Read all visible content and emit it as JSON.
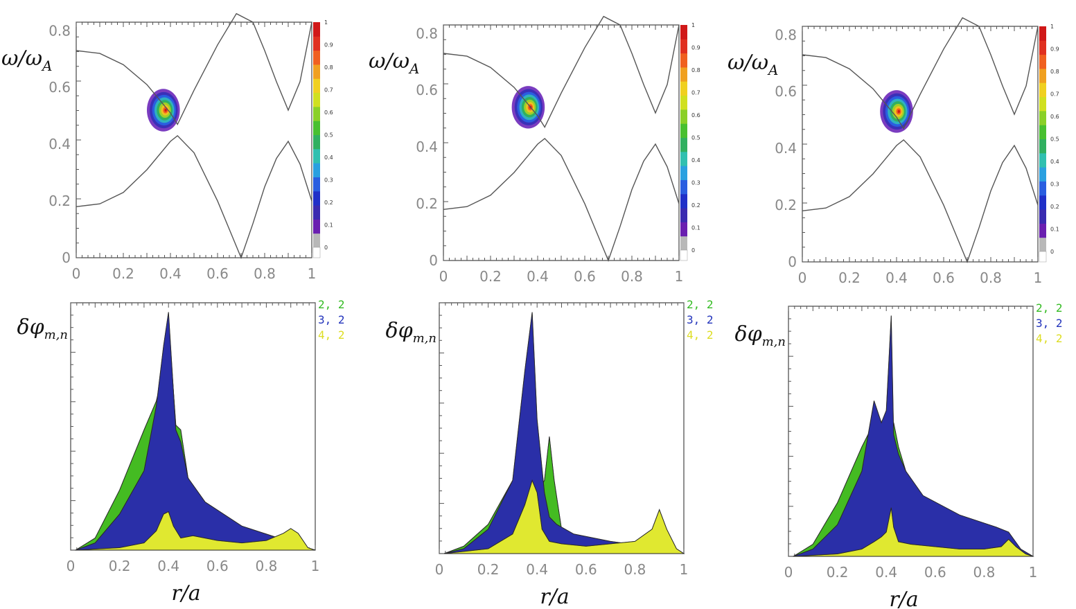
{
  "figure": {
    "colorbar_labels": [
      "1",
      "0.9",
      "0.8",
      "0.7",
      "0.6",
      "0.5",
      "0.4",
      "0.3",
      "0.2",
      "0.1",
      "0"
    ],
    "colorbar_colors": [
      "#b8b8b8",
      "#6a1fb0",
      "#3a2bb0",
      "#2030c8",
      "#2a5ee0",
      "#2aa0e0",
      "#30c0b0",
      "#30b060",
      "#48c030",
      "#8ad028",
      "#d0e020",
      "#f0d020",
      "#f0a020",
      "#f06020",
      "#e03020",
      "#d01818"
    ],
    "legend_colors": {
      "m2": "#33bb22",
      "m3": "#2233bb",
      "m4": "#dddd22"
    },
    "top_ylabel": "ω/ωA",
    "bottom_ylabel": "δφm,n",
    "xlabel": "r/a"
  },
  "chart_data": [
    {
      "type": "line",
      "panel": "continuum-1",
      "x_ticks": [
        "0",
        "0.2",
        "0.4",
        "0.6",
        "0.8",
        "1"
      ],
      "y_ticks": [
        "0",
        "0.2",
        "0.4",
        "0.6",
        "0.8"
      ],
      "xlim": [
        0,
        1
      ],
      "ylim": [
        0,
        0.83
      ],
      "continuum_upper": {
        "x": [
          0,
          0.1,
          0.2,
          0.3,
          0.4,
          0.43,
          0.5,
          0.6,
          0.68,
          0.75,
          0.8,
          0.85,
          0.9,
          0.95,
          1.0
        ],
        "y": [
          0.73,
          0.72,
          0.68,
          0.61,
          0.51,
          0.47,
          0.59,
          0.75,
          0.86,
          0.83,
          0.73,
          0.62,
          0.52,
          0.62,
          0.83
        ]
      },
      "continuum_lower": {
        "x": [
          0,
          0.1,
          0.2,
          0.3,
          0.4,
          0.43,
          0.5,
          0.6,
          0.65,
          0.7,
          0.75,
          0.8,
          0.85,
          0.9,
          0.95,
          1.0
        ],
        "y": [
          0.18,
          0.19,
          0.23,
          0.31,
          0.41,
          0.43,
          0.37,
          0.2,
          0.1,
          0.0,
          0.12,
          0.25,
          0.35,
          0.41,
          0.33,
          0.2
        ]
      },
      "hotspot": {
        "r": 0.37,
        "w": 0.52,
        "rx": 0.14,
        "ry": 0.075
      },
      "colorbar_title": ""
    },
    {
      "type": "line",
      "panel": "continuum-2",
      "x_ticks": [
        "0",
        "0.2",
        "0.4",
        "0.6",
        "0.8",
        "1"
      ],
      "y_ticks": [
        "0",
        "0.2",
        "0.4",
        "0.6",
        "0.8"
      ],
      "xlim": [
        0,
        1
      ],
      "ylim": [
        0,
        0.83
      ],
      "continuum_upper": {
        "x": [
          0,
          0.1,
          0.2,
          0.3,
          0.4,
          0.43,
          0.5,
          0.6,
          0.68,
          0.75,
          0.8,
          0.85,
          0.9,
          0.95,
          1.0
        ],
        "y": [
          0.73,
          0.72,
          0.68,
          0.61,
          0.51,
          0.47,
          0.59,
          0.75,
          0.86,
          0.83,
          0.73,
          0.62,
          0.52,
          0.62,
          0.83
        ]
      },
      "continuum_lower": {
        "x": [
          0,
          0.1,
          0.2,
          0.3,
          0.4,
          0.43,
          0.5,
          0.6,
          0.65,
          0.7,
          0.75,
          0.8,
          0.85,
          0.9,
          0.95,
          1.0
        ],
        "y": [
          0.18,
          0.19,
          0.23,
          0.31,
          0.41,
          0.43,
          0.37,
          0.2,
          0.1,
          0.0,
          0.12,
          0.25,
          0.35,
          0.41,
          0.33,
          0.2
        ]
      },
      "hotspot": {
        "r": 0.36,
        "w": 0.54,
        "rx": 0.14,
        "ry": 0.075
      }
    },
    {
      "type": "line",
      "panel": "continuum-3",
      "x_ticks": [
        "0",
        "0.2",
        "0.4",
        "0.6",
        "0.8",
        "1"
      ],
      "y_ticks": [
        "0",
        "0.2",
        "0.4",
        "0.6",
        "0.8"
      ],
      "xlim": [
        0,
        1
      ],
      "ylim": [
        0,
        0.83
      ],
      "continuum_upper": {
        "x": [
          0,
          0.1,
          0.2,
          0.3,
          0.4,
          0.43,
          0.5,
          0.6,
          0.68,
          0.75,
          0.8,
          0.85,
          0.9,
          0.95,
          1.0
        ],
        "y": [
          0.73,
          0.72,
          0.68,
          0.61,
          0.51,
          0.47,
          0.59,
          0.75,
          0.86,
          0.83,
          0.73,
          0.62,
          0.52,
          0.62,
          0.83
        ]
      },
      "continuum_lower": {
        "x": [
          0,
          0.1,
          0.2,
          0.3,
          0.4,
          0.43,
          0.5,
          0.6,
          0.65,
          0.7,
          0.75,
          0.8,
          0.85,
          0.9,
          0.95,
          1.0
        ],
        "y": [
          0.18,
          0.19,
          0.23,
          0.31,
          0.41,
          0.43,
          0.37,
          0.2,
          0.1,
          0.0,
          0.12,
          0.25,
          0.35,
          0.41,
          0.33,
          0.2
        ]
      },
      "hotspot": {
        "r": 0.4,
        "w": 0.53,
        "rx": 0.14,
        "ry": 0.075
      }
    },
    {
      "type": "area",
      "panel": "modes-1",
      "x_ticks": [
        "0",
        "0.2",
        "0.4",
        "0.6",
        "0.8",
        "1"
      ],
      "xlim": [
        0,
        1
      ],
      "ylim": [
        0,
        1.0
      ],
      "legend": [
        "2, 2",
        "3, 2",
        "4, 2"
      ],
      "series": [
        {
          "name": "2, 2",
          "x": [
            0.02,
            0.1,
            0.2,
            0.3,
            0.35,
            0.38,
            0.4,
            0.43,
            0.45,
            0.48,
            0.55,
            0.7,
            0.85,
            0.95,
            1.0
          ],
          "y": [
            0,
            0.05,
            0.25,
            0.5,
            0.62,
            0.75,
            0.95,
            0.52,
            0.5,
            0.3,
            0.18,
            0.09,
            0.05,
            0.01,
            0
          ]
        },
        {
          "name": "3, 2",
          "x": [
            0.02,
            0.1,
            0.2,
            0.3,
            0.35,
            0.38,
            0.4,
            0.43,
            0.45,
            0.48,
            0.55,
            0.7,
            0.85,
            0.95,
            1.0
          ],
          "y": [
            0,
            0.03,
            0.15,
            0.33,
            0.6,
            0.85,
            0.99,
            0.5,
            0.45,
            0.3,
            0.2,
            0.1,
            0.05,
            0.01,
            0
          ]
        },
        {
          "name": "4, 2",
          "x": [
            0.02,
            0.2,
            0.3,
            0.35,
            0.38,
            0.4,
            0.42,
            0.45,
            0.5,
            0.6,
            0.7,
            0.8,
            0.87,
            0.9,
            0.93,
            0.97,
            1.0
          ],
          "y": [
            0,
            0.01,
            0.03,
            0.08,
            0.15,
            0.16,
            0.1,
            0.05,
            0.06,
            0.04,
            0.03,
            0.04,
            0.07,
            0.09,
            0.07,
            0.01,
            0
          ]
        }
      ]
    },
    {
      "type": "area",
      "panel": "modes-2",
      "x_ticks": [
        "0",
        "0.2",
        "0.4",
        "0.6",
        "0.8",
        "1"
      ],
      "xlim": [
        0,
        1
      ],
      "ylim": [
        0,
        1.0
      ],
      "legend": [
        "2, 2",
        "3, 2",
        "4, 2"
      ],
      "series": [
        {
          "name": "2, 2",
          "x": [
            0.02,
            0.1,
            0.2,
            0.3,
            0.36,
            0.38,
            0.4,
            0.43,
            0.45,
            0.47,
            0.5,
            0.55,
            0.7,
            0.85,
            0.95,
            1.0
          ],
          "y": [
            0,
            0.03,
            0.12,
            0.3,
            0.5,
            0.2,
            0.25,
            0.3,
            0.48,
            0.3,
            0.1,
            0.05,
            0.03,
            0.02,
            0.01,
            0
          ]
        },
        {
          "name": "3, 2",
          "x": [
            0.02,
            0.1,
            0.2,
            0.3,
            0.35,
            0.38,
            0.4,
            0.43,
            0.45,
            0.48,
            0.55,
            0.7,
            0.85,
            0.95,
            1.0
          ],
          "y": [
            0,
            0.02,
            0.1,
            0.3,
            0.75,
            0.99,
            0.55,
            0.25,
            0.15,
            0.12,
            0.08,
            0.05,
            0.03,
            0.01,
            0
          ]
        },
        {
          "name": "4, 2",
          "x": [
            0.02,
            0.2,
            0.3,
            0.35,
            0.38,
            0.4,
            0.42,
            0.45,
            0.5,
            0.6,
            0.7,
            0.8,
            0.87,
            0.9,
            0.93,
            0.97,
            1.0
          ],
          "y": [
            0,
            0.02,
            0.08,
            0.2,
            0.3,
            0.25,
            0.1,
            0.05,
            0.04,
            0.03,
            0.04,
            0.05,
            0.1,
            0.18,
            0.1,
            0.02,
            0
          ]
        }
      ]
    },
    {
      "type": "area",
      "panel": "modes-3",
      "x_ticks": [
        "0",
        "0.2",
        "0.4",
        "0.6",
        "0.8",
        "1"
      ],
      "xlim": [
        0,
        1
      ],
      "ylim": [
        0,
        1.0
      ],
      "legend": [
        "2, 2",
        "3, 2",
        "4, 2"
      ],
      "series": [
        {
          "name": "2, 2",
          "x": [
            0.02,
            0.1,
            0.2,
            0.3,
            0.35,
            0.38,
            0.4,
            0.43,
            0.45,
            0.48,
            0.55,
            0.7,
            0.85,
            0.95,
            1.0
          ],
          "y": [
            0,
            0.05,
            0.22,
            0.45,
            0.55,
            0.5,
            0.45,
            0.55,
            0.45,
            0.35,
            0.2,
            0.1,
            0.05,
            0.01,
            0
          ]
        },
        {
          "name": "3, 2",
          "x": [
            0.02,
            0.1,
            0.2,
            0.3,
            0.35,
            0.38,
            0.4,
            0.42,
            0.43,
            0.45,
            0.48,
            0.55,
            0.7,
            0.85,
            0.9,
            0.95,
            1.0
          ],
          "y": [
            0,
            0.03,
            0.13,
            0.35,
            0.64,
            0.55,
            0.6,
            0.99,
            0.5,
            0.42,
            0.35,
            0.25,
            0.17,
            0.12,
            0.1,
            0.03,
            0
          ]
        },
        {
          "name": "4, 2",
          "x": [
            0.02,
            0.2,
            0.3,
            0.35,
            0.38,
            0.4,
            0.42,
            0.43,
            0.45,
            0.5,
            0.6,
            0.7,
            0.8,
            0.87,
            0.9,
            0.93,
            0.97,
            1.0
          ],
          "y": [
            0,
            0.01,
            0.03,
            0.06,
            0.08,
            0.1,
            0.2,
            0.12,
            0.06,
            0.05,
            0.04,
            0.03,
            0.03,
            0.04,
            0.07,
            0.04,
            0.01,
            0
          ]
        }
      ]
    }
  ]
}
